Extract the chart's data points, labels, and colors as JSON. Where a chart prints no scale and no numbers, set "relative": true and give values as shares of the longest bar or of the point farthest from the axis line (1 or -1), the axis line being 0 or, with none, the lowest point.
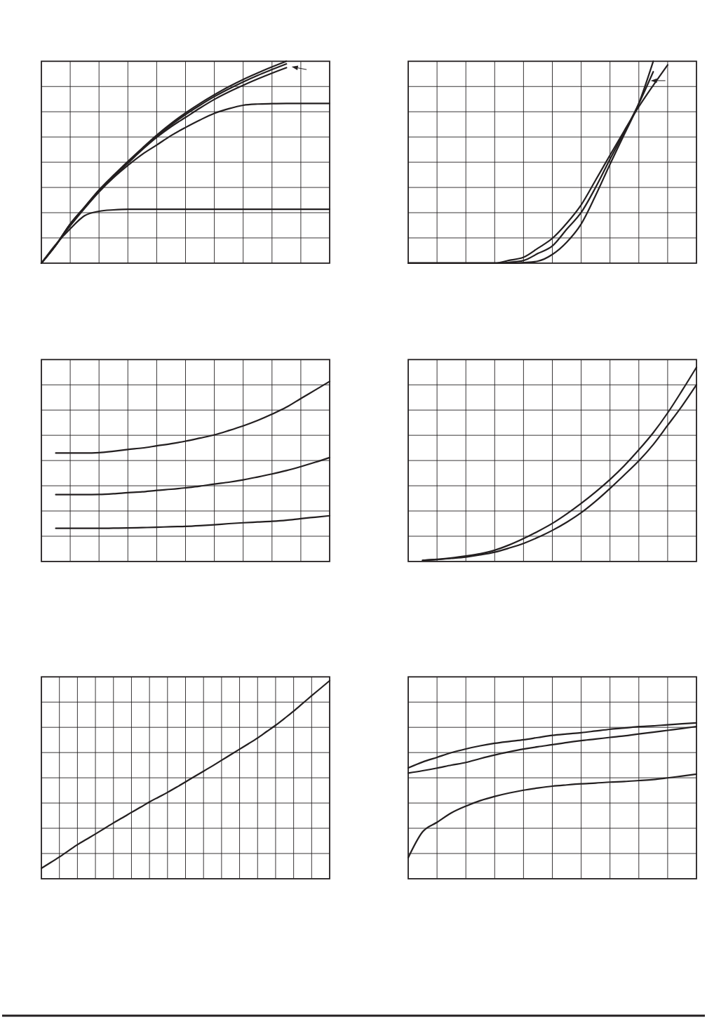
{
  "chart_data": [
    {
      "type": "line",
      "relative": true,
      "grid": true,
      "categories": [
        null,
        null,
        null,
        null,
        null,
        null,
        null,
        null,
        null,
        null,
        null,
        null,
        null,
        null,
        null,
        null,
        null,
        null,
        null,
        null,
        null
      ],
      "series": [
        {
          "color": "#231f20",
          "values": [
            0,
            0.089,
            0.194,
            0.278,
            0.362,
            0.435,
            0.504,
            0.57,
            0.634,
            0.692,
            0.744,
            0.791,
            0.834,
            0.874,
            0.91,
            0.942,
            0.972,
            1,
            null,
            null,
            null
          ]
        },
        {
          "color": "#231f20",
          "values": [
            0,
            0.089,
            0.194,
            0.278,
            0.362,
            0.433,
            0.5,
            0.565,
            0.628,
            0.685,
            0.736,
            0.782,
            0.825,
            0.863,
            0.898,
            0.93,
            0.959,
            0.987,
            null,
            null,
            null
          ]
        },
        {
          "color": "#231f20",
          "values": [
            0,
            0.089,
            0.192,
            0.275,
            0.357,
            0.429,
            0.495,
            0.562,
            0.623,
            0.676,
            0.722,
            0.768,
            0.811,
            0.848,
            0.881,
            0.912,
            0.941,
            0.968,
            null,
            null,
            null
          ]
        },
        {
          "color": "#231f20",
          "values": [
            0,
            0.089,
            0.185,
            0.272,
            0.353,
            0.423,
            0.484,
            0.539,
            0.585,
            0.632,
            0.672,
            0.709,
            0.742,
            0.765,
            0.782,
            0.788,
            0.79,
            0.791,
            0.791,
            0.791,
            0.791
          ]
        },
        {
          "color": "#231f20",
          "values": [
            0,
            0.093,
            0.17,
            0.235,
            0.257,
            0.264,
            0.267,
            0.267,
            0.267,
            0.267,
            0.267,
            0.267,
            0.267,
            0.267,
            0.267,
            0.267,
            0.267,
            0.267,
            0.267,
            0.267,
            0.267
          ]
        }
      ]
    },
    {
      "type": "line",
      "relative": true,
      "grid": true,
      "categories": [
        null,
        null,
        null,
        null,
        null,
        null,
        null,
        null,
        null,
        null,
        null,
        null,
        null,
        null,
        null,
        null,
        null,
        null,
        null,
        null,
        null
      ],
      "series": [
        {
          "color": "#231f20",
          "values": [
            0,
            0,
            0,
            0,
            0,
            0,
            0,
            0.014,
            0.029,
            0.074,
            0.123,
            0.198,
            0.289,
            0.411,
            0.535,
            0.657,
            0.775,
            0.881,
            0.982,
            null,
            null
          ]
        },
        {
          "color": "#231f20",
          "values": [
            0,
            0,
            0,
            0,
            0,
            0,
            0,
            0.004,
            0.013,
            0.048,
            0.085,
            0.168,
            0.251,
            0.375,
            0.515,
            0.65,
            0.79,
            0.948,
            null,
            null,
            null
          ]
        },
        {
          "color": "#231f20",
          "values": [
            0,
            0,
            0,
            0,
            0,
            0,
            0,
            0,
            0.003,
            0.01,
            0.043,
            0.104,
            0.194,
            0.335,
            0.49,
            0.639,
            0.792,
            1,
            null,
            null,
            null
          ]
        }
      ]
    },
    {
      "type": "line",
      "relative": true,
      "grid": true,
      "categories": [
        null,
        null,
        null,
        null,
        null,
        null,
        null,
        null,
        null,
        null,
        null,
        null,
        null,
        null,
        null,
        null,
        null,
        null,
        null,
        null,
        null
      ],
      "series": [
        {
          "color": "#231f20",
          "values": [
            null,
            0.602,
            0.602,
            0.602,
            0.604,
            0.612,
            0.622,
            0.63,
            0.642,
            0.654,
            0.668,
            0.685,
            0.703,
            0.727,
            0.753,
            0.783,
            0.818,
            0.857,
            0.905,
            0.952,
            1
          ]
        },
        {
          "color": "#231f20",
          "values": [
            null,
            0.371,
            0.371,
            0.371,
            0.372,
            0.376,
            0.382,
            0.387,
            0.395,
            0.401,
            0.409,
            0.418,
            0.43,
            0.44,
            0.453,
            0.469,
            0.486,
            0.505,
            0.527,
            0.551,
            0.577
          ]
        },
        {
          "color": "#231f20",
          "values": [
            null,
            0.184,
            0.184,
            0.184,
            0.184,
            0.185,
            0.186,
            0.188,
            0.19,
            0.193,
            0.195,
            0.199,
            0.204,
            0.21,
            0.215,
            0.219,
            0.223,
            0.229,
            0.238,
            0.246,
            0.254
          ]
        }
      ]
    },
    {
      "type": "line",
      "relative": true,
      "grid": true,
      "categories": [
        null,
        null,
        null,
        null,
        null,
        null,
        null,
        null,
        null,
        null,
        null,
        null,
        null,
        null,
        null,
        null,
        null,
        null,
        null,
        null,
        null
      ],
      "series": [
        {
          "color": "#231f20",
          "values": [
            null,
            0.006,
            0.011,
            0.018,
            0.028,
            0.04,
            0.058,
            0.085,
            0.118,
            0.155,
            0.196,
            0.245,
            0.299,
            0.358,
            0.422,
            0.494,
            0.575,
            0.663,
            0.765,
            0.88,
            1
          ]
        },
        {
          "color": "#231f20",
          "values": [
            null,
            0.006,
            0.01,
            0.016,
            0.023,
            0.034,
            0.048,
            0.069,
            0.093,
            0.124,
            0.16,
            0.202,
            0.251,
            0.31,
            0.376,
            0.446,
            0.518,
            0.602,
            0.701,
            0.801,
            0.91
          ]
        }
      ]
    },
    {
      "type": "line",
      "relative": true,
      "grid": true,
      "categories": [
        null,
        null,
        null,
        null,
        null,
        null,
        null,
        null,
        null,
        null,
        null,
        null,
        null,
        null,
        null,
        null,
        null,
        null,
        null,
        null,
        null,
        null,
        null,
        null,
        null,
        null,
        null,
        null,
        null,
        null,
        null,
        null,
        null
      ],
      "series": [
        {
          "color": "#231f20",
          "values": [
            0.053,
            0.081,
            0.11,
            0.141,
            0.172,
            0.199,
            0.226,
            0.254,
            0.282,
            0.308,
            0.335,
            0.361,
            0.388,
            0.412,
            0.436,
            0.462,
            0.489,
            0.516,
            0.543,
            0.57,
            0.598,
            0.626,
            0.654,
            0.682,
            0.711,
            0.743,
            0.775,
            0.81,
            0.846,
            0.885,
            0.924,
            0.962,
            1
          ]
        }
      ]
    },
    {
      "type": "line",
      "relative": true,
      "grid": true,
      "categories": [
        null,
        null,
        null,
        null,
        null,
        null,
        null,
        null,
        null,
        null,
        null,
        null,
        null,
        null,
        null,
        null,
        null,
        null,
        null,
        null,
        null
      ],
      "series": [
        {
          "color": "#231f20",
          "values": [
            0.711,
            0.749,
            0.779,
            0.809,
            0.833,
            0.853,
            0.869,
            0.881,
            0.892,
            0.906,
            0.92,
            0.929,
            0.937,
            0.948,
            0.959,
            0.967,
            0.976,
            0.981,
            0.988,
            0.994,
            1
          ]
        },
        {
          "color": "#231f20",
          "values": [
            0.678,
            0.693,
            0.71,
            0.729,
            0.746,
            0.771,
            0.794,
            0.814,
            0.832,
            0.847,
            0.86,
            0.874,
            0.886,
            0.896,
            0.907,
            0.917,
            0.929,
            0.94,
            0.952,
            0.964,
            0.977
          ]
        },
        {
          "color": "#231f20",
          "values": [
            0.135,
            0.301,
            0.362,
            0.423,
            0.466,
            0.501,
            0.528,
            0.55,
            0.568,
            0.582,
            0.594,
            0.602,
            0.609,
            0.614,
            0.62,
            0.624,
            0.63,
            0.636,
            0.647,
            0.659,
            0.671
          ]
        }
      ]
    }
  ]
}
